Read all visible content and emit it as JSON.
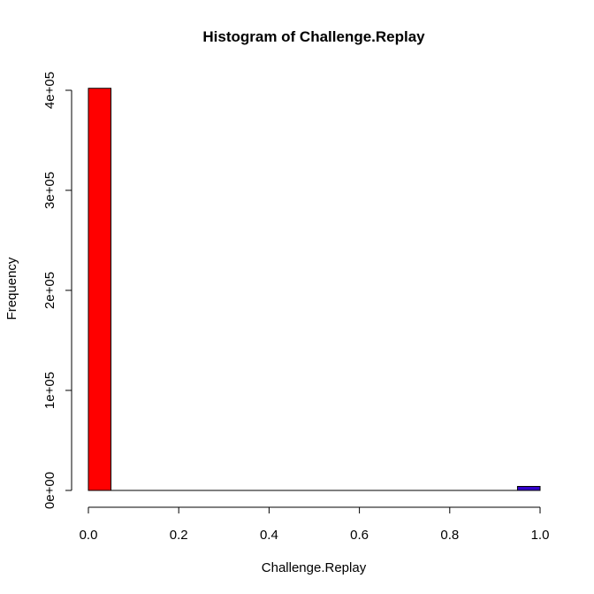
{
  "chart_data": {
    "type": "bar",
    "title": "Histogram of Challenge.Replay",
    "xlabel": "Challenge.Replay",
    "ylabel": "Frequency",
    "bins": [
      {
        "start": 0.0,
        "end": 0.05,
        "count": 402000,
        "color": "#ff0000"
      },
      {
        "start": 0.95,
        "end": 1.0,
        "count": 4000,
        "color": "#3300cc"
      }
    ],
    "xlim": [
      0,
      1
    ],
    "ylim": [
      0,
      400000
    ],
    "x_ticks": [
      {
        "value": 0.0,
        "label": "0.0"
      },
      {
        "value": 0.2,
        "label": "0.2"
      },
      {
        "value": 0.4,
        "label": "0.4"
      },
      {
        "value": 0.6,
        "label": "0.6"
      },
      {
        "value": 0.8,
        "label": "0.8"
      },
      {
        "value": 1.0,
        "label": "1.0"
      }
    ],
    "y_ticks": [
      {
        "value": 0,
        "label": "0e+00"
      },
      {
        "value": 100000,
        "label": "1e+05"
      },
      {
        "value": 200000,
        "label": "2e+05"
      },
      {
        "value": 300000,
        "label": "3e+05"
      },
      {
        "value": 400000,
        "label": "4e+05"
      }
    ],
    "grid": false,
    "legend": "none"
  }
}
